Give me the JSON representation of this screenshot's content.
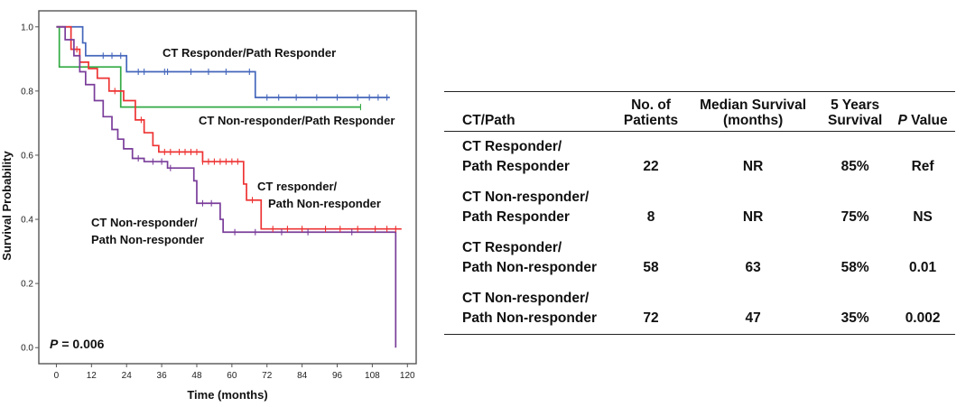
{
  "chart_data": {
    "type": "line",
    "subtype": "kaplan-meier",
    "xlabel": "Time (months)",
    "ylabel": "Survival Probability",
    "xlim": [
      -6,
      123
    ],
    "ylim": [
      -0.05,
      1.05
    ],
    "xticks": [
      0,
      12,
      24,
      36,
      48,
      60,
      72,
      84,
      96,
      108,
      120
    ],
    "yticks": [
      0.0,
      0.2,
      0.4,
      0.6,
      0.8,
      1.0
    ],
    "ytick_labels": [
      "0.0",
      "0.2",
      "0.4",
      "0.6",
      "0.8",
      "1.0"
    ],
    "annotation": {
      "p_label": "P",
      "p_value": "= 0.006"
    },
    "series": [
      {
        "name": "CT Responder/Path Responder",
        "label_lines": [
          "CT Responder/Path Responder"
        ],
        "color": "#4466bb",
        "steps": [
          [
            0,
            1.0
          ],
          [
            9,
            0.95
          ],
          [
            10,
            0.91
          ],
          [
            24,
            0.86
          ],
          [
            68,
            0.78
          ],
          [
            114,
            0.78
          ]
        ],
        "censor_times": [
          16,
          19,
          22,
          28,
          30,
          37,
          38,
          46,
          52,
          58,
          66,
          72,
          76,
          82,
          89,
          96,
          103,
          107,
          110,
          113
        ]
      },
      {
        "name": "CT Non-responder/Path Responder",
        "label_lines": [
          "CT Non-responder/Path Responder"
        ],
        "color": "#33aa44",
        "steps": [
          [
            0,
            1.0
          ],
          [
            1,
            0.875
          ],
          [
            22,
            0.75
          ],
          [
            104,
            0.75
          ]
        ],
        "censor_times": [
          104
        ]
      },
      {
        "name": "CT responder/Path Non-responder",
        "label_lines": [
          "CT responder/",
          "Path Non-responder"
        ],
        "color": "#ee3333",
        "steps": [
          [
            0,
            1.0
          ],
          [
            5,
            0.93
          ],
          [
            8,
            0.89
          ],
          [
            11,
            0.87
          ],
          [
            14,
            0.84
          ],
          [
            18,
            0.8
          ],
          [
            23,
            0.77
          ],
          [
            27,
            0.71
          ],
          [
            30,
            0.67
          ],
          [
            33,
            0.63
          ],
          [
            35,
            0.61
          ],
          [
            50,
            0.58
          ],
          [
            64,
            0.51
          ],
          [
            65,
            0.46
          ],
          [
            70,
            0.37
          ],
          [
            118,
            0.37
          ]
        ],
        "censor_times": [
          7,
          20,
          29,
          37,
          39,
          42,
          44,
          46,
          48,
          50,
          52,
          54,
          56,
          58,
          60,
          62,
          67,
          74,
          79,
          84,
          92,
          97,
          103,
          109,
          113,
          116
        ]
      },
      {
        "name": "CT Non-responder/Path Non-responder",
        "label_lines": [
          "CT Non-responder/",
          "Path Non-responder"
        ],
        "color": "#7a3d9a",
        "steps": [
          [
            0,
            1.0
          ],
          [
            3,
            0.96
          ],
          [
            6,
            0.91
          ],
          [
            8,
            0.86
          ],
          [
            10,
            0.82
          ],
          [
            13,
            0.77
          ],
          [
            16,
            0.72
          ],
          [
            19,
            0.68
          ],
          [
            21,
            0.65
          ],
          [
            23,
            0.62
          ],
          [
            26,
            0.59
          ],
          [
            30,
            0.58
          ],
          [
            38,
            0.56
          ],
          [
            47,
            0.52
          ],
          [
            48,
            0.45
          ],
          [
            56,
            0.4
          ],
          [
            57,
            0.36
          ],
          [
            115,
            0.36
          ],
          [
            116,
            0.0
          ]
        ],
        "censor_times": [
          28,
          33,
          36,
          39,
          50,
          53,
          61,
          68,
          77,
          86,
          101
        ]
      }
    ]
  },
  "table": {
    "headers": [
      {
        "lines": [
          "CT/Path"
        ]
      },
      {
        "lines": [
          "No. of",
          "Patients"
        ]
      },
      {
        "lines": [
          "Median Survival",
          "(months)"
        ]
      },
      {
        "lines": [
          "5 Years",
          "Survival"
        ]
      },
      {
        "italic_part": "P",
        "rest": " Value"
      }
    ],
    "rows": [
      {
        "group": [
          "CT Responder/",
          "Path Responder"
        ],
        "patients": "22",
        "median": "NR",
        "five_year": "85%",
        "p": "Ref"
      },
      {
        "group": [
          "CT Non-responder/",
          "Path Responder"
        ],
        "patients": "8",
        "median": "NR",
        "five_year": "75%",
        "p": "NS"
      },
      {
        "group": [
          "CT Responder/",
          "Path Non-responder"
        ],
        "patients": "58",
        "median": "63",
        "five_year": "58%",
        "p": "0.01"
      },
      {
        "group": [
          "CT Non-responder/",
          "Path Non-responder"
        ],
        "patients": "72",
        "median": "47",
        "five_year": "35%",
        "p": "0.002"
      }
    ]
  }
}
